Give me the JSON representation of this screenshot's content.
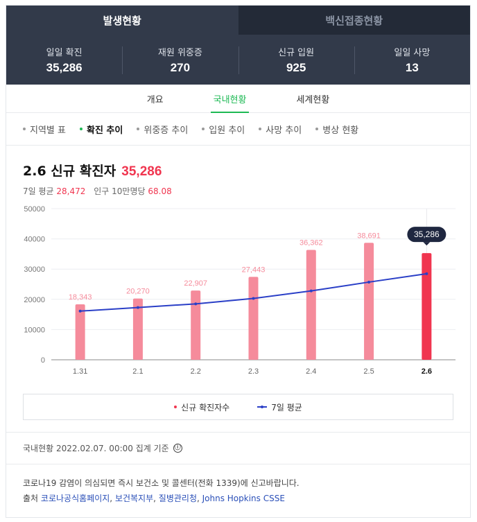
{
  "main_tabs": [
    {
      "label": "발생현황",
      "active": true
    },
    {
      "label": "백신접종현황",
      "active": false
    }
  ],
  "stats": [
    {
      "label": "일일 확진",
      "value": "35,286"
    },
    {
      "label": "재원 위중증",
      "value": "270"
    },
    {
      "label": "신규 입원",
      "value": "925"
    },
    {
      "label": "일일 사망",
      "value": "13"
    }
  ],
  "sub_tabs": [
    {
      "label": "개요",
      "active": false
    },
    {
      "label": "국내현황",
      "active": true
    },
    {
      "label": "세계현황",
      "active": false
    }
  ],
  "filters": [
    {
      "label": "지역별 표",
      "active": false
    },
    {
      "label": "확진 추이",
      "active": true
    },
    {
      "label": "위중증 추이",
      "active": false
    },
    {
      "label": "입원 추이",
      "active": false
    },
    {
      "label": "사망 추이",
      "active": false
    },
    {
      "label": "병상 현황",
      "active": false
    }
  ],
  "headline": {
    "title": "2.6 신규 확진자",
    "value": "35,286",
    "avg_label": "7일 평균",
    "avg_value": "28,472",
    "per_label": "인구 10만명당",
    "per_value": "68.08"
  },
  "chart_data": {
    "type": "bar",
    "categories": [
      "1.31",
      "2.1",
      "2.2",
      "2.3",
      "2.4",
      "2.5",
      "2.6"
    ],
    "series": [
      {
        "name": "신규 확진자수",
        "type": "bar",
        "values": [
          18343,
          20270,
          22907,
          27443,
          36362,
          38691,
          35286
        ],
        "color": "#f58b9b",
        "highlight_color": "#f0354f"
      },
      {
        "name": "7일 평균",
        "type": "line",
        "values": [
          16100,
          17300,
          18500,
          20300,
          22800,
          25700,
          28472
        ],
        "color": "#2a3fc7"
      }
    ],
    "data_labels": [
      "18,343",
      "20,270",
      "22,907",
      "27,443",
      "36,362",
      "38,691",
      "35,286"
    ],
    "highlight_index": 6,
    "yticks": [
      0,
      10000,
      20000,
      30000,
      40000,
      50000
    ],
    "ylim": [
      0,
      50000
    ],
    "grid": true,
    "legend_position": "bottom"
  },
  "legend": {
    "bar_label": "신규 확진자수",
    "line_label": "7일 평균"
  },
  "note": {
    "text": "국내현황 2022.02.07. 00:00 집계 기준",
    "info_icon": "ⓘ"
  },
  "footer": {
    "line1": "코로나19 감염이 의심되면 즉시 보건소 및 콜센터(전화 1339)에 신고바랍니다.",
    "source_label": "출처",
    "sources": [
      "코로나공식홈페이지",
      "보건복지부",
      "질병관리청",
      "Johns Hopkins CSSE"
    ]
  }
}
